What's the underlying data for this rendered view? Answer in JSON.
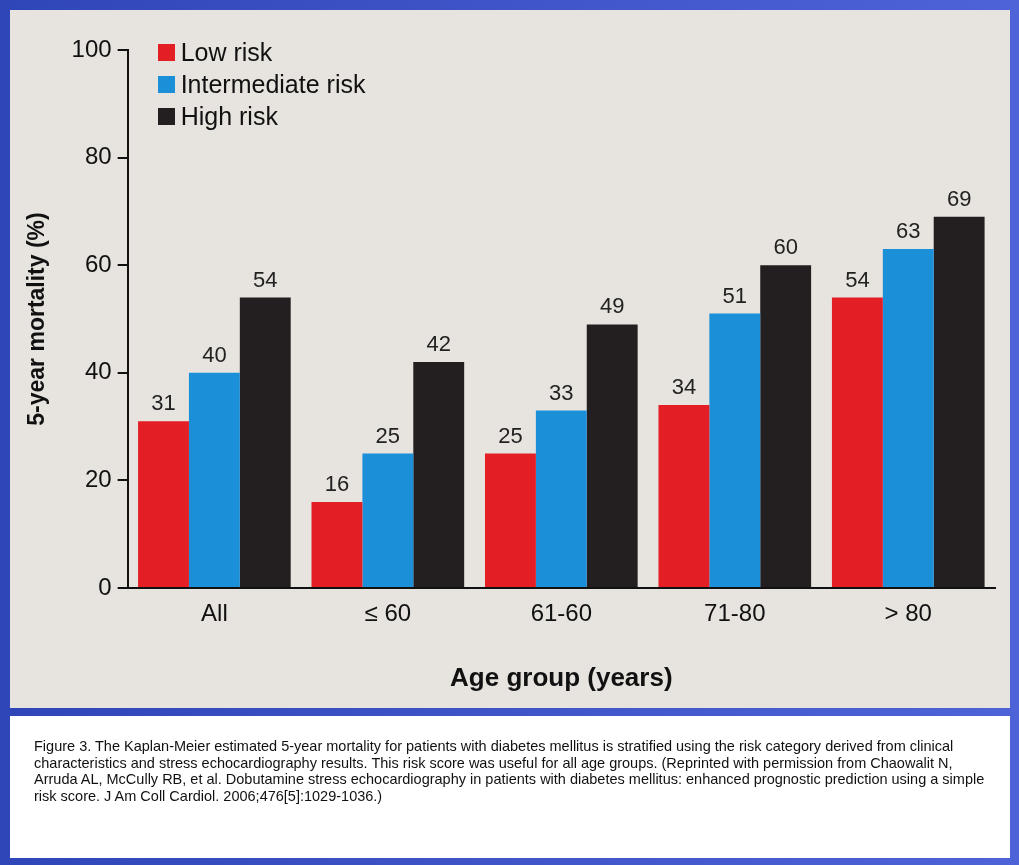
{
  "chart_data": {
    "type": "bar",
    "xlabel": "Age group (years)",
    "ylabel": "5-year mortality (%)",
    "categories": [
      "All",
      "≤ 60",
      "61-60",
      "71-80",
      "> 80"
    ],
    "series": [
      {
        "name": "Low risk",
        "color": "#e31e25",
        "values": [
          31,
          16,
          25,
          34,
          54
        ]
      },
      {
        "name": "Intermediate risk",
        "color": "#1b8fd8",
        "values": [
          40,
          25,
          33,
          51,
          63
        ]
      },
      {
        "name": "High risk",
        "color": "#231f20",
        "values": [
          54,
          42,
          49,
          60,
          69
        ]
      }
    ],
    "ylim": [
      0,
      100
    ],
    "yticks": [
      0,
      20,
      40,
      60,
      80,
      100
    ],
    "grid": false,
    "legend": "top left",
    "data_labels": true,
    "annotations": [
      "Figure 3. The Kaplan-Meier estimated 5-year mortality for patients with diabetes mellitus is stratified using the risk category derived from clinical characteristics and stress echocardiography results. This risk score was useful for all age groups. (Reprinted with permission from Chaowalit N, Arruda AL, McCully RB, et al. Dobutamine stress echocardiography in patients with diabetes mellitus: enhanced prognostic prediction using a simple risk score. J Am Coll Cardiol. 2006;476[5]:1029-1036.)"
    ]
  }
}
